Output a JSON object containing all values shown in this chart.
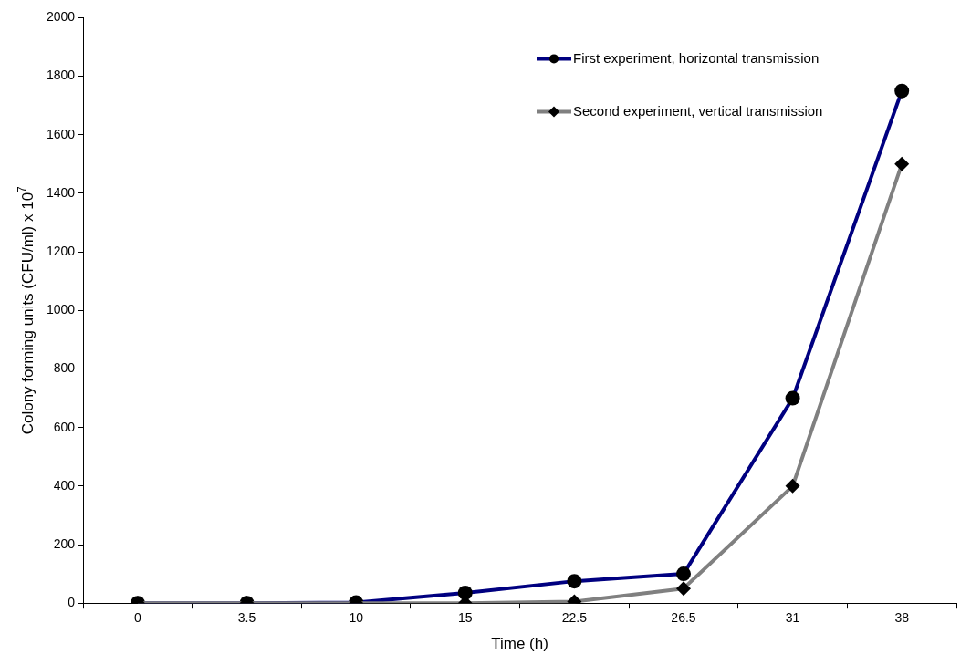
{
  "chart_data": {
    "type": "line",
    "xlabel": "Time (h)",
    "ylabel": "Colony forming units (CFU/ml) x 10$^{7}$",
    "categories": [
      "0",
      "3.5",
      "10",
      "15",
      "22.5",
      "26.5",
      "31",
      "38"
    ],
    "series": [
      {
        "name": "First experiment, horizontal transmission",
        "color": "#000080",
        "marker": "circle",
        "values": [
          0,
          0,
          2,
          35,
          75,
          100,
          700,
          1750
        ]
      },
      {
        "name": "Second experiment, vertical transmission",
        "color": "#808080",
        "marker": "diamond",
        "values": [
          0,
          0,
          0,
          0,
          5,
          50,
          400,
          1500
        ]
      }
    ],
    "ylim": [
      0,
      2000
    ],
    "yticks": [
      0,
      200,
      400,
      600,
      800,
      1000,
      1200,
      1400,
      1600,
      1800,
      2000
    ],
    "grid": false,
    "legend": "top right",
    "line_style": "solid"
  }
}
